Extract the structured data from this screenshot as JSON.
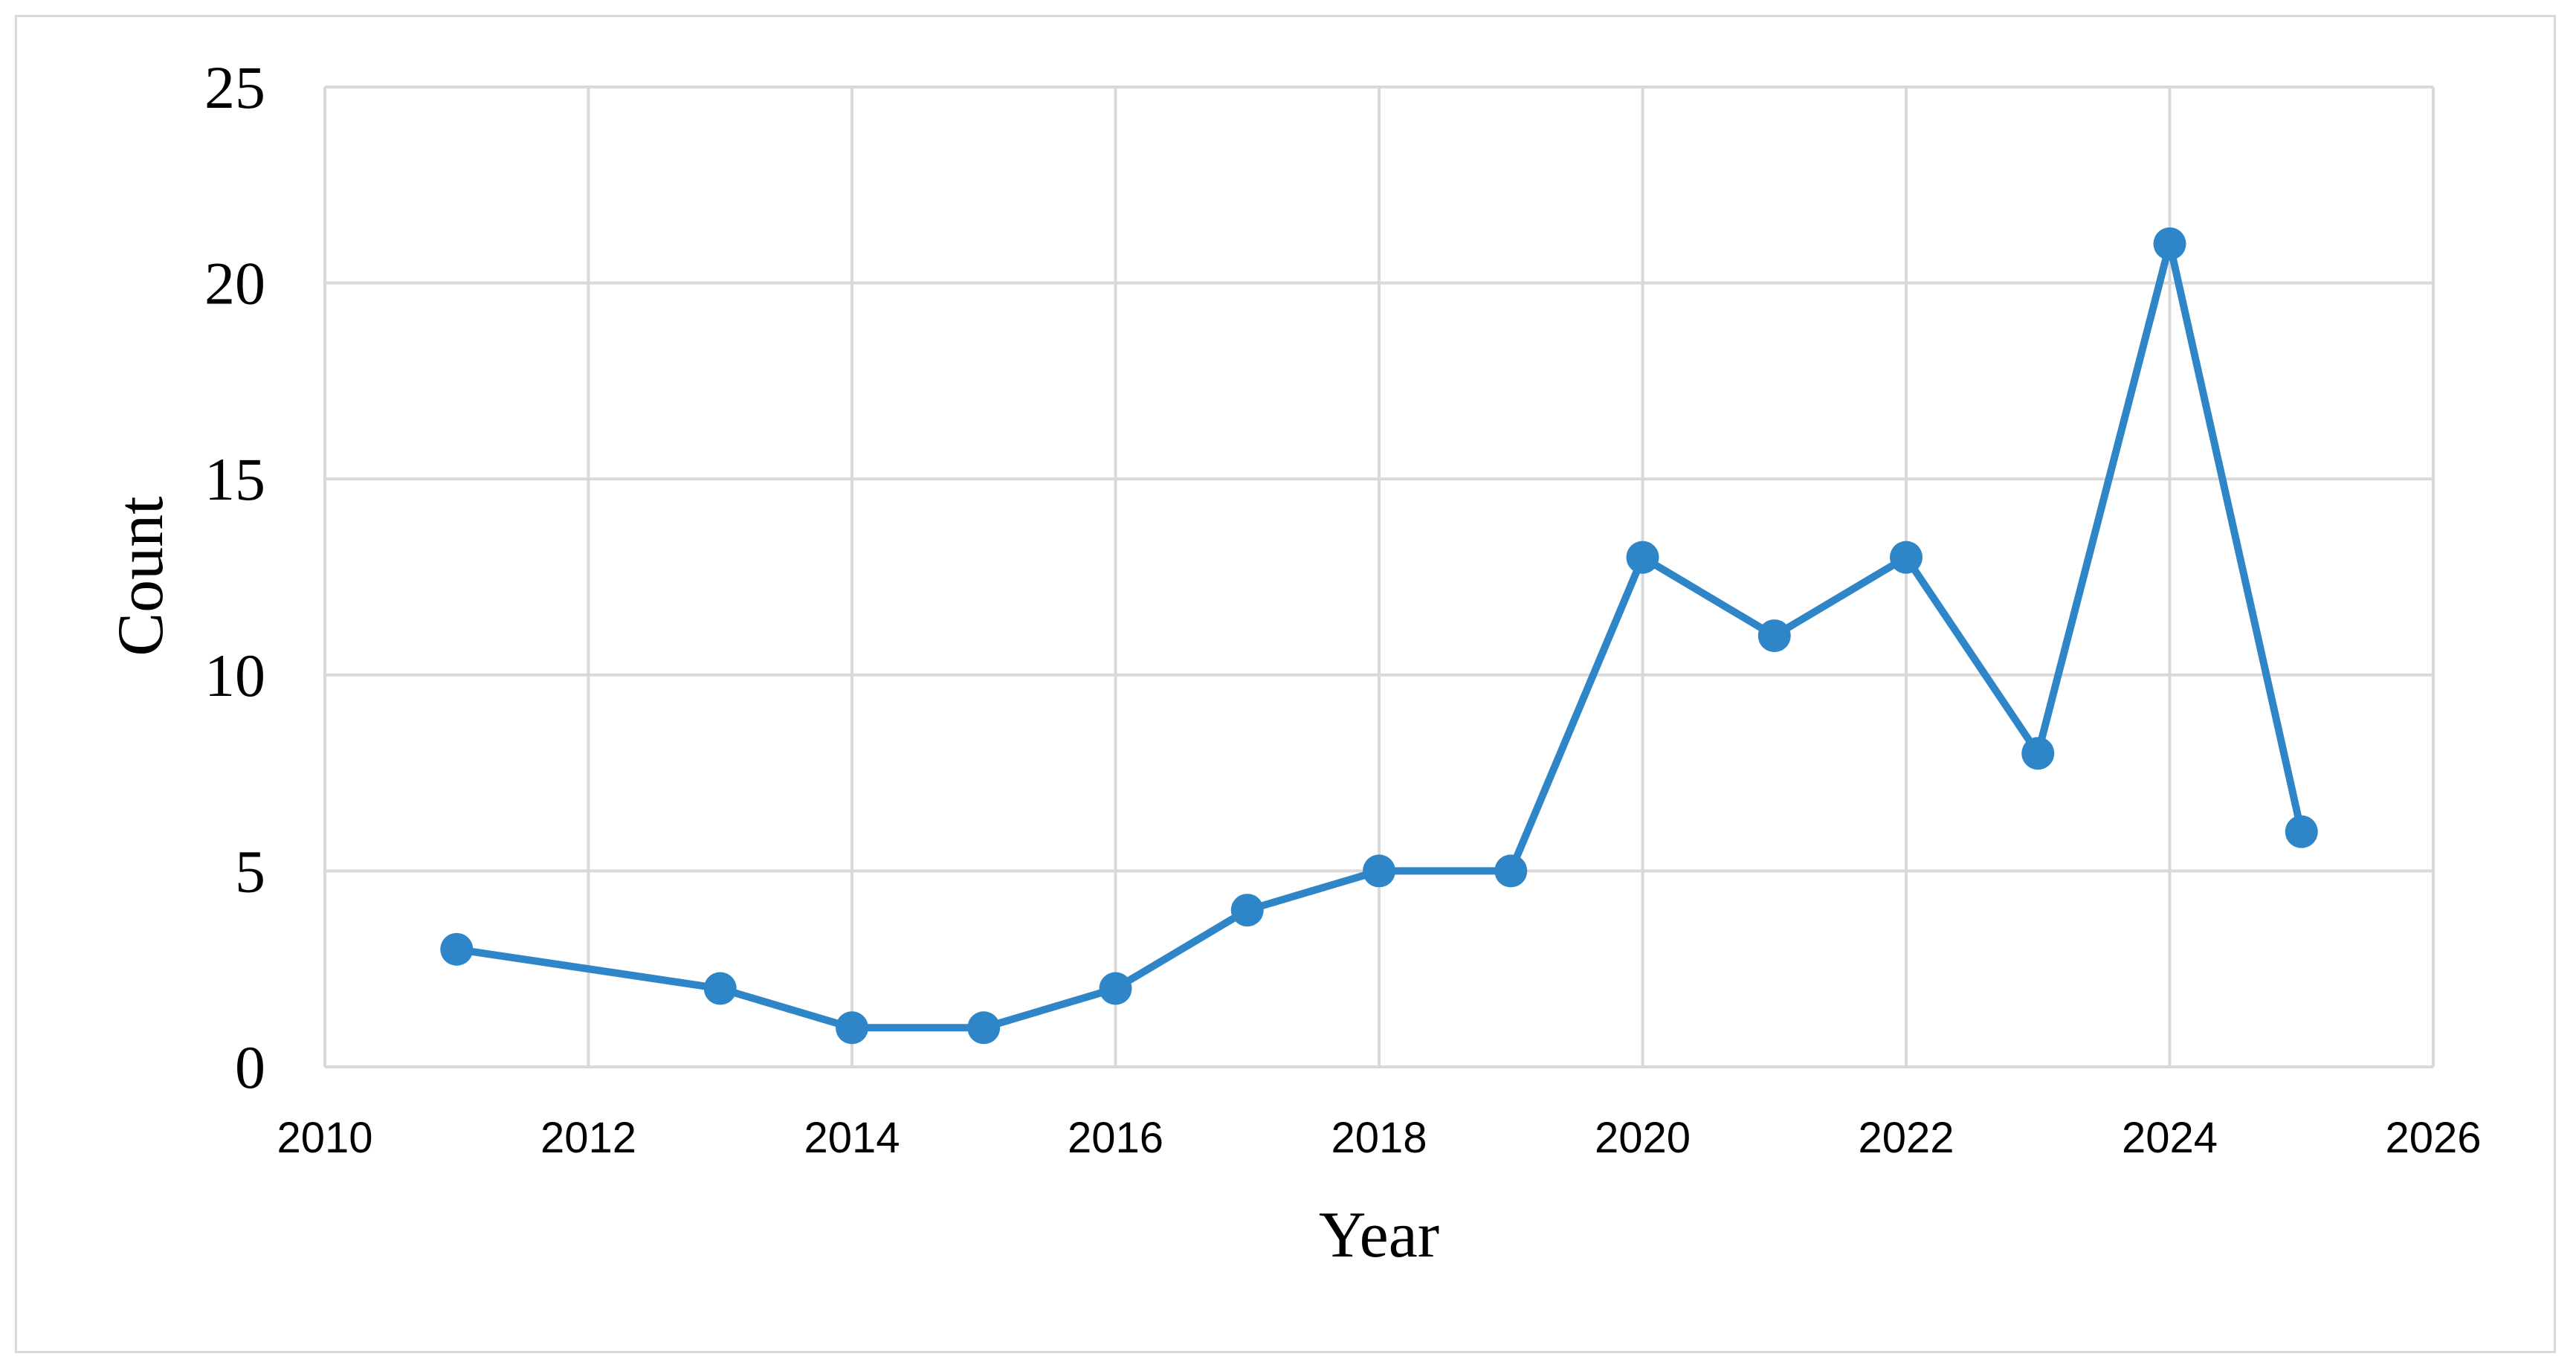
{
  "chart_data": {
    "type": "line",
    "title": "",
    "xlabel": "Year",
    "ylabel": "Count",
    "xlim": [
      2010,
      2026
    ],
    "ylim": [
      0,
      25
    ],
    "x_ticks": [
      2010,
      2012,
      2014,
      2016,
      2018,
      2020,
      2022,
      2024,
      2026
    ],
    "y_ticks": [
      0,
      5,
      10,
      15,
      20,
      25
    ],
    "grid": true,
    "legend": "none",
    "series": [
      {
        "color": "#2e86c8",
        "marker": "circle",
        "x": [
          2011,
          2013,
          2014,
          2015,
          2016,
          2017,
          2018,
          2019,
          2020,
          2021,
          2022,
          2023,
          2024,
          2025
        ],
        "y": [
          3,
          2,
          1,
          1,
          2,
          4,
          5,
          5,
          13,
          11,
          13,
          8,
          21,
          6
        ]
      }
    ]
  }
}
